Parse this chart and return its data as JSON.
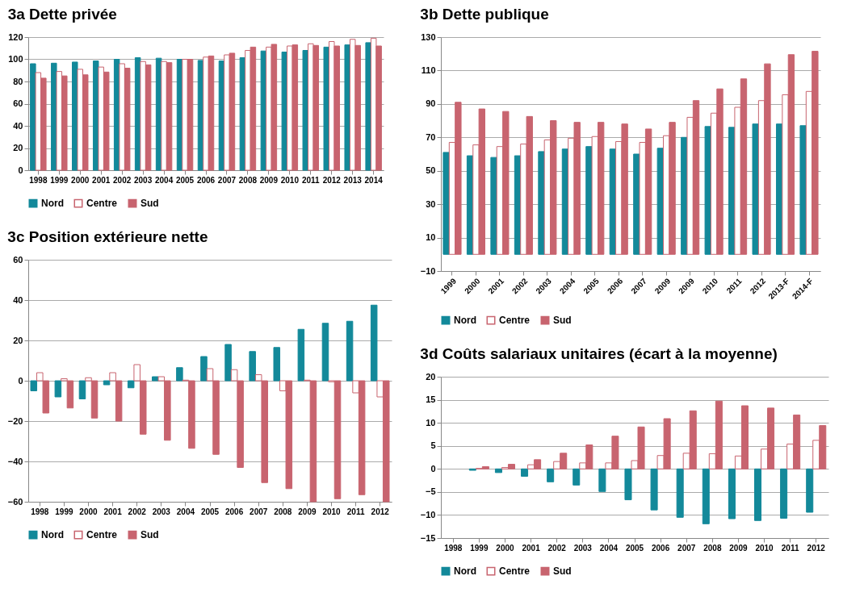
{
  "chart_data": [
    {
      "type": "bar",
      "title": "3a Dette privée",
      "categories": [
        "1998",
        "1999",
        "2000",
        "2001",
        "2002",
        "2003",
        "2004",
        "2005",
        "2006",
        "2007",
        "2008",
        "2009",
        "2010",
        "2011",
        "2012",
        "2013",
        "2014"
      ],
      "series": [
        {
          "name": "Nord",
          "color": "#13899a",
          "values": [
            96,
            96.5,
            97.5,
            98.5,
            100,
            101.5,
            101,
            100,
            99,
            98.5,
            101.5,
            107.5,
            106.5,
            108,
            111,
            113,
            115
          ]
        },
        {
          "name": "Centre",
          "color": "#ffffff",
          "values": [
            88,
            89,
            91,
            93,
            96,
            98,
            98,
            100,
            102,
            104,
            108,
            111,
            112,
            114,
            116,
            118,
            119
          ]
        },
        {
          "name": "Sud",
          "color": "#c8646f",
          "values": [
            83,
            85,
            86,
            88.5,
            92,
            95,
            97,
            100,
            103,
            105.5,
            111,
            113.5,
            113,
            112.5,
            112,
            112.5,
            112
          ]
        }
      ],
      "ylim": [
        0,
        120
      ],
      "yticks": [
        0,
        20,
        40,
        60,
        80,
        100,
        120
      ],
      "grid": "y",
      "legend": "bottom"
    },
    {
      "type": "bar",
      "title": "3b Dette publique",
      "categories": [
        "1999",
        "2000",
        "2001",
        "2002",
        "2003",
        "2004",
        "2005",
        "2006",
        "2007",
        "2009",
        "2009",
        "2010",
        "2011",
        "2012",
        "2013-F",
        "2014-F"
      ],
      "series": [
        {
          "name": "Nord",
          "color": "#13899a",
          "values": [
            61,
            59,
            58,
            59,
            61.5,
            63,
            64.5,
            63,
            60,
            63.5,
            70,
            76.5,
            76,
            78,
            78,
            77
          ]
        },
        {
          "name": "Centre",
          "color": "#ffffff",
          "values": [
            67,
            65.5,
            64.5,
            66,
            68.5,
            69.5,
            70.5,
            67.5,
            67,
            71,
            82,
            84.5,
            88,
            92,
            95.5,
            97.5
          ]
        },
        {
          "name": "Sud",
          "color": "#c8646f",
          "values": [
            91,
            87,
            85.5,
            82.5,
            80,
            79,
            79,
            78,
            75,
            79,
            92,
            99,
            105,
            114,
            119.5,
            121.5
          ]
        }
      ],
      "ylim": [
        -10,
        130
      ],
      "yticks": [
        -10,
        10,
        30,
        50,
        70,
        90,
        110,
        130
      ],
      "grid": "y",
      "legend": "bottom"
    },
    {
      "type": "bar",
      "title": "3c Position extérieure nette",
      "categories": [
        "1998",
        "1999",
        "2000",
        "2001",
        "2002",
        "2003",
        "2004",
        "2005",
        "2006",
        "2007",
        "2008",
        "2009",
        "2010",
        "2011",
        "2012"
      ],
      "series": [
        {
          "name": "Nord",
          "color": "#13899a",
          "values": [
            -5,
            -8,
            -9,
            -2,
            -3.5,
            2,
            6.5,
            12,
            18,
            14.5,
            16.5,
            25.5,
            28.5,
            29.5,
            37.5
          ]
        },
        {
          "name": "Centre",
          "color": "#ffffff",
          "values": [
            4,
            1,
            1.5,
            4,
            8,
            2,
            0.3,
            6,
            5.5,
            3,
            -5,
            0.3,
            -0.5,
            -6,
            -8
          ]
        },
        {
          "name": "Sud",
          "color": "#c8646f",
          "values": [
            -16,
            -13.5,
            -18.5,
            -20,
            -26.5,
            -29.5,
            -33.5,
            -36.5,
            -43,
            -50.5,
            -53.5,
            -60,
            -58.5,
            -56.5,
            -60
          ]
        }
      ],
      "ylim": [
        -60,
        60
      ],
      "yticks": [
        -60,
        -40,
        -20,
        0,
        20,
        40,
        60
      ],
      "grid": "y",
      "legend": "bottom"
    },
    {
      "type": "bar",
      "title": "3d Coûts salariaux unitaires (écart à la moyenne)",
      "categories": [
        "1998",
        "1999",
        "2000",
        "2001",
        "2002",
        "2003",
        "2004",
        "2005",
        "2006",
        "2007",
        "2008",
        "2009",
        "2010",
        "2011",
        "2012"
      ],
      "series": [
        {
          "name": "Nord",
          "color": "#13899a",
          "values": [
            null,
            -0.3,
            -0.8,
            -1.6,
            -2.8,
            -3.5,
            -4.9,
            -6.7,
            -8.9,
            -10.5,
            -11.9,
            -10.8,
            -11.2,
            -10.7,
            -9.4
          ]
        },
        {
          "name": "Centre",
          "color": "#ffffff",
          "values": [
            null,
            0.1,
            0.3,
            0.9,
            1.6,
            1.3,
            1.3,
            1.8,
            2.9,
            3.4,
            3.3,
            2.8,
            4.3,
            5.4,
            6.2
          ]
        },
        {
          "name": "Sud",
          "color": "#c8646f",
          "values": [
            null,
            0.5,
            1.0,
            2.0,
            3.4,
            5.2,
            7.1,
            9.1,
            10.9,
            12.6,
            14.7,
            13.7,
            13.2,
            11.7,
            9.4
          ]
        }
      ],
      "ylim": [
        -15,
        20
      ],
      "yticks": [
        -15,
        -10,
        -5,
        0,
        5,
        10,
        15,
        20
      ],
      "grid": "y",
      "legend": "bottom"
    }
  ]
}
